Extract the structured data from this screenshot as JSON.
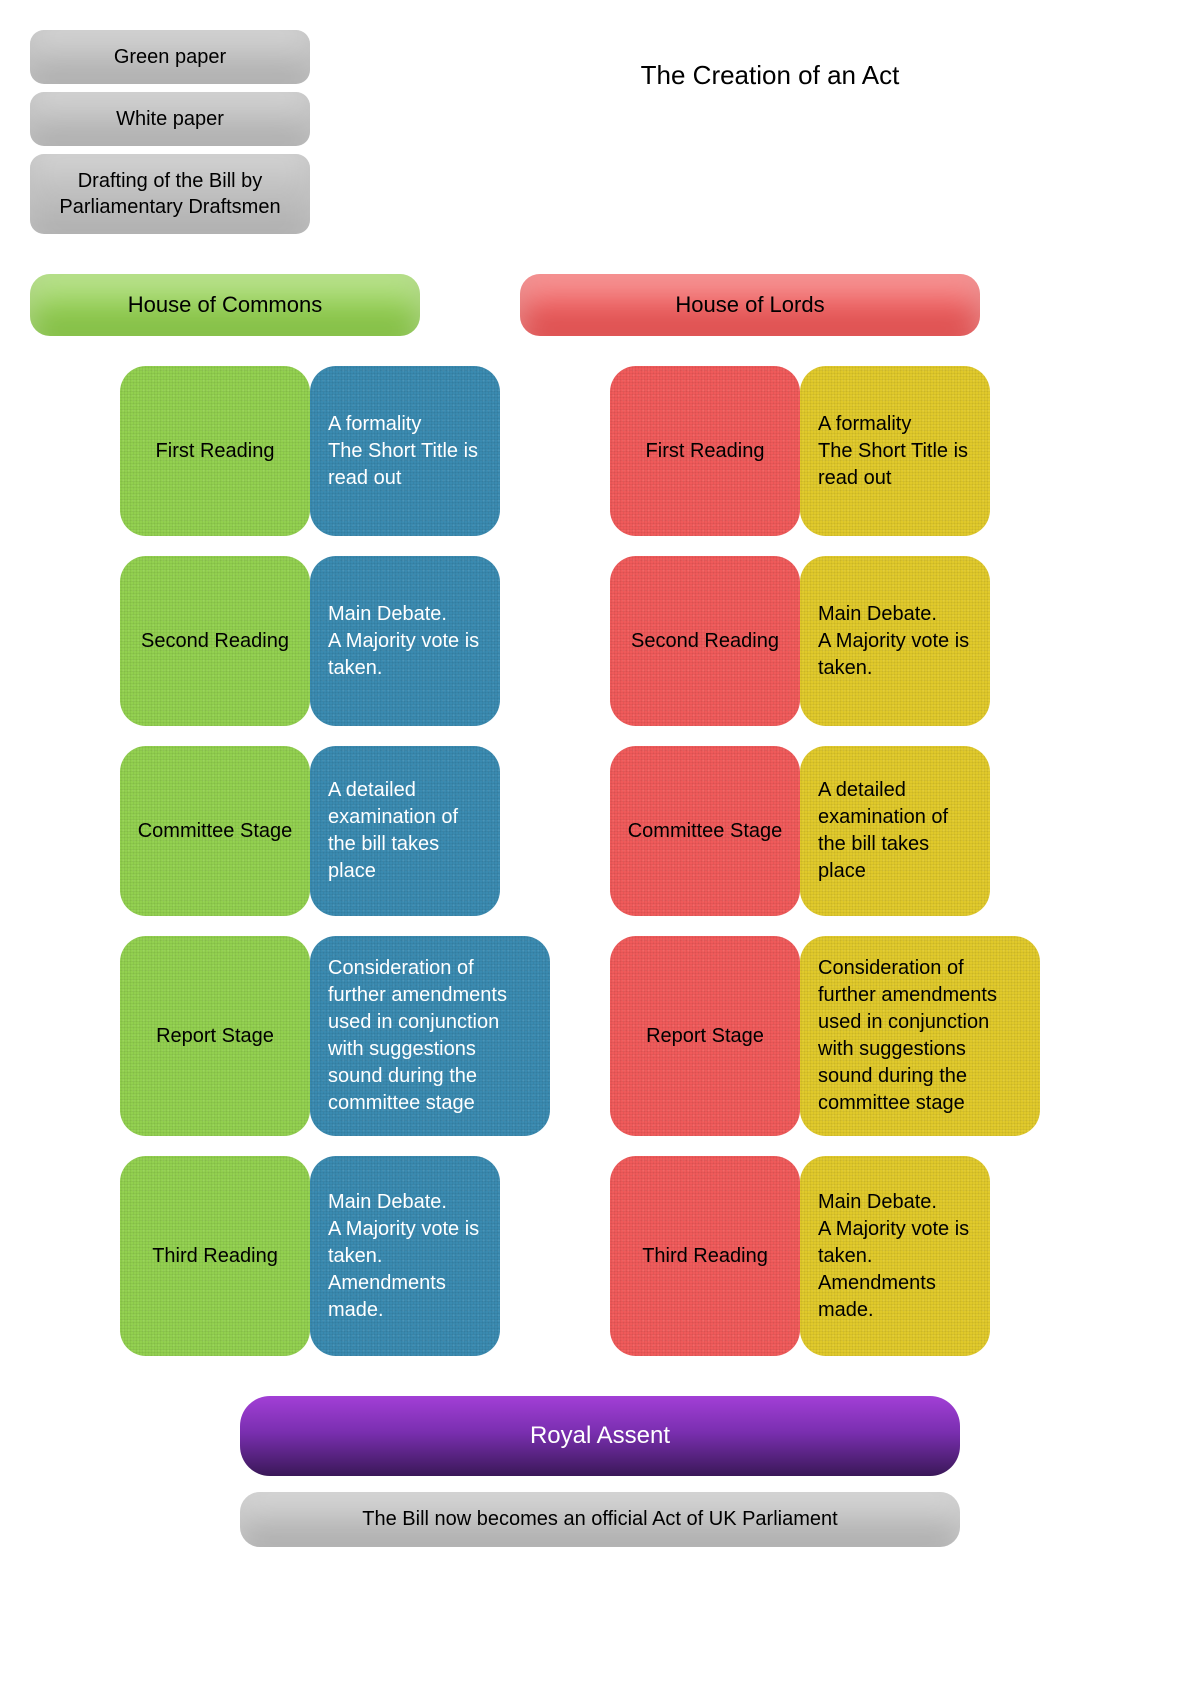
{
  "title": "The Creation of an Act",
  "colors": {
    "grey": "#bfbfbf",
    "green": "#92d04f",
    "blue": "#3a8ab0",
    "red": "#f05a5a",
    "yellow": "#e0c92a",
    "white_text": "#ffffff",
    "black_text": "#000000"
  },
  "prep": [
    {
      "label": "Green paper"
    },
    {
      "label": "White paper"
    },
    {
      "label": "Drafting of the Bill by Parliamentary Draftsmen"
    }
  ],
  "chambers": {
    "commons": {
      "title": "House of Commons",
      "header_color_key": "green",
      "label_color_key": "green",
      "desc_color_key": "blue",
      "desc_text_color_key": "white_text"
    },
    "lords": {
      "title": "House of Lords",
      "header_color_key": "red",
      "label_color_key": "red",
      "desc_color_key": "yellow",
      "desc_text_color_key": "black_text"
    }
  },
  "stages": [
    {
      "name": "First Reading",
      "desc": "A formality\nThe Short Title is read out",
      "tall": false,
      "wide": false
    },
    {
      "name": "Second Reading",
      "desc": "Main Debate.\nA Majority vote is taken.",
      "tall": false,
      "wide": false
    },
    {
      "name": "Committee Stage",
      "desc": "A detailed examination of the bill takes place",
      "tall": false,
      "wide": false
    },
    {
      "name": "Report Stage",
      "desc": "Consideration of further amendments used in conjunction with suggestions sound during  the committee stage",
      "tall": true,
      "wide": true
    },
    {
      "name": "Third Reading",
      "desc": "Main Debate.\nA Majority vote is taken.\nAmendments made.",
      "tall": true,
      "wide": false
    }
  ],
  "royal_assent": "Royal Assent",
  "final": "The Bill now becomes an official Act of UK Parliament"
}
